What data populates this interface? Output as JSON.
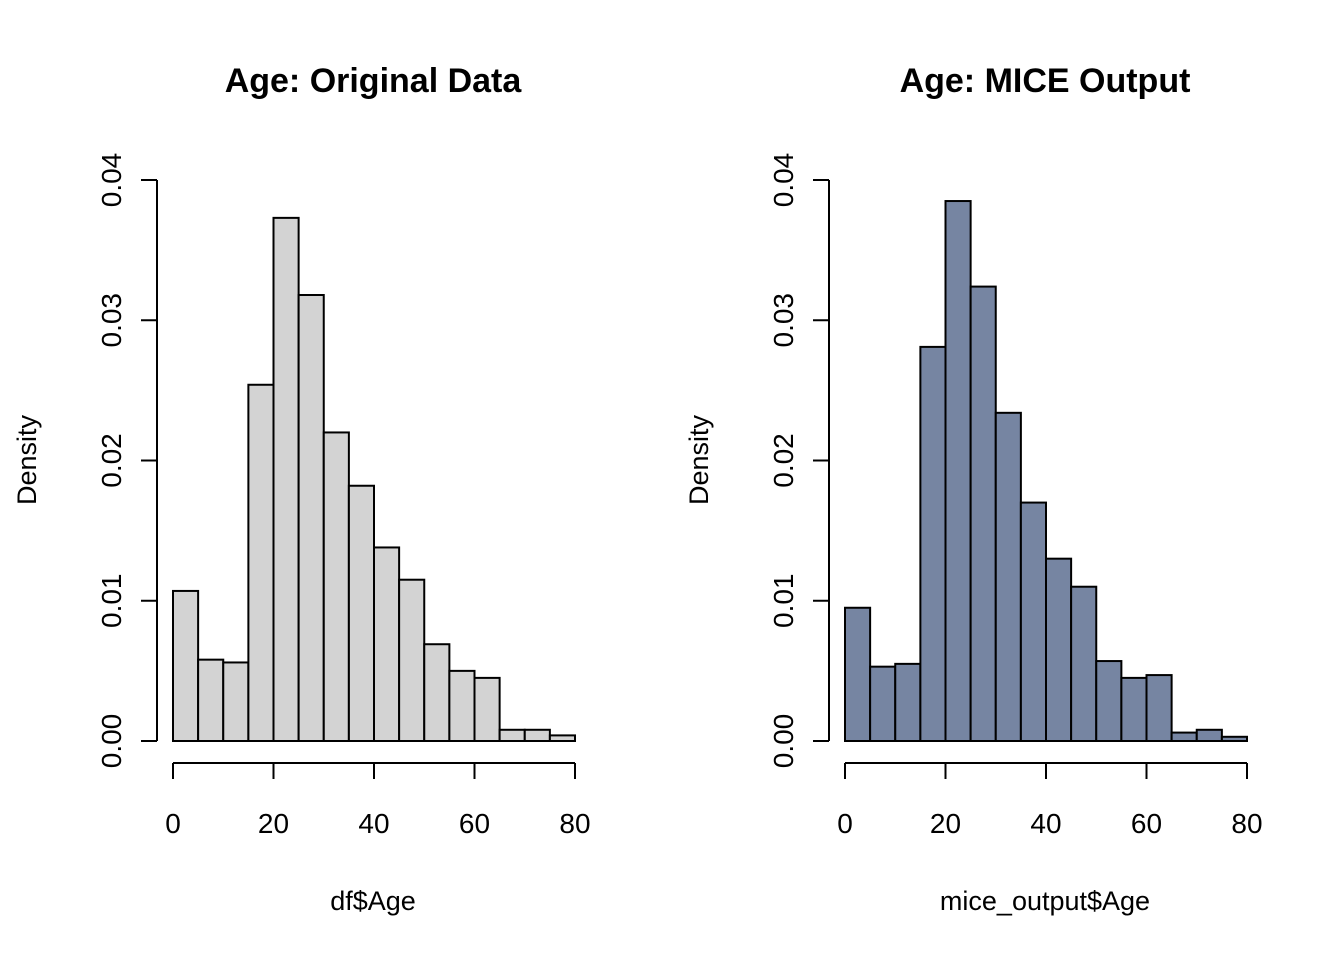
{
  "chart_data": [
    {
      "type": "bar",
      "subtype": "histogram",
      "title": "Age: Original Data",
      "xlabel": "df$Age",
      "ylabel": "Density",
      "bar_color": "#D3D3D3",
      "bin_width": 5,
      "x": [
        0,
        5,
        10,
        15,
        20,
        25,
        30,
        35,
        40,
        45,
        50,
        55,
        60,
        65,
        70,
        75
      ],
      "values": [
        0.0107,
        0.0058,
        0.0056,
        0.0254,
        0.0373,
        0.0318,
        0.022,
        0.0182,
        0.0138,
        0.0115,
        0.0069,
        0.005,
        0.0045,
        0.0008,
        0.0008,
        0.0004
      ],
      "xlim": [
        0,
        80
      ],
      "ylim": [
        0,
        0.04
      ],
      "xticks": [
        "0",
        "20",
        "40",
        "60",
        "80"
      ],
      "yticks": [
        "0.00",
        "0.01",
        "0.02",
        "0.03",
        "0.04"
      ],
      "grid": false
    },
    {
      "type": "bar",
      "subtype": "histogram",
      "title": "Age: MICE Output",
      "xlabel": "mice_output$Age",
      "ylabel": "Density",
      "bar_color": "#7685A2",
      "bin_width": 5,
      "x": [
        0,
        5,
        10,
        15,
        20,
        25,
        30,
        35,
        40,
        45,
        50,
        55,
        60,
        65,
        70,
        75
      ],
      "values": [
        0.0095,
        0.0053,
        0.0055,
        0.0281,
        0.0385,
        0.0324,
        0.0234,
        0.017,
        0.013,
        0.011,
        0.0057,
        0.0045,
        0.0047,
        0.0006,
        0.0008,
        0.0003
      ],
      "xlim": [
        0,
        80
      ],
      "ylim": [
        0,
        0.04
      ],
      "xticks": [
        "0",
        "20",
        "40",
        "60",
        "80"
      ],
      "yticks": [
        "0.00",
        "0.01",
        "0.02",
        "0.03",
        "0.04"
      ],
      "grid": false
    }
  ]
}
